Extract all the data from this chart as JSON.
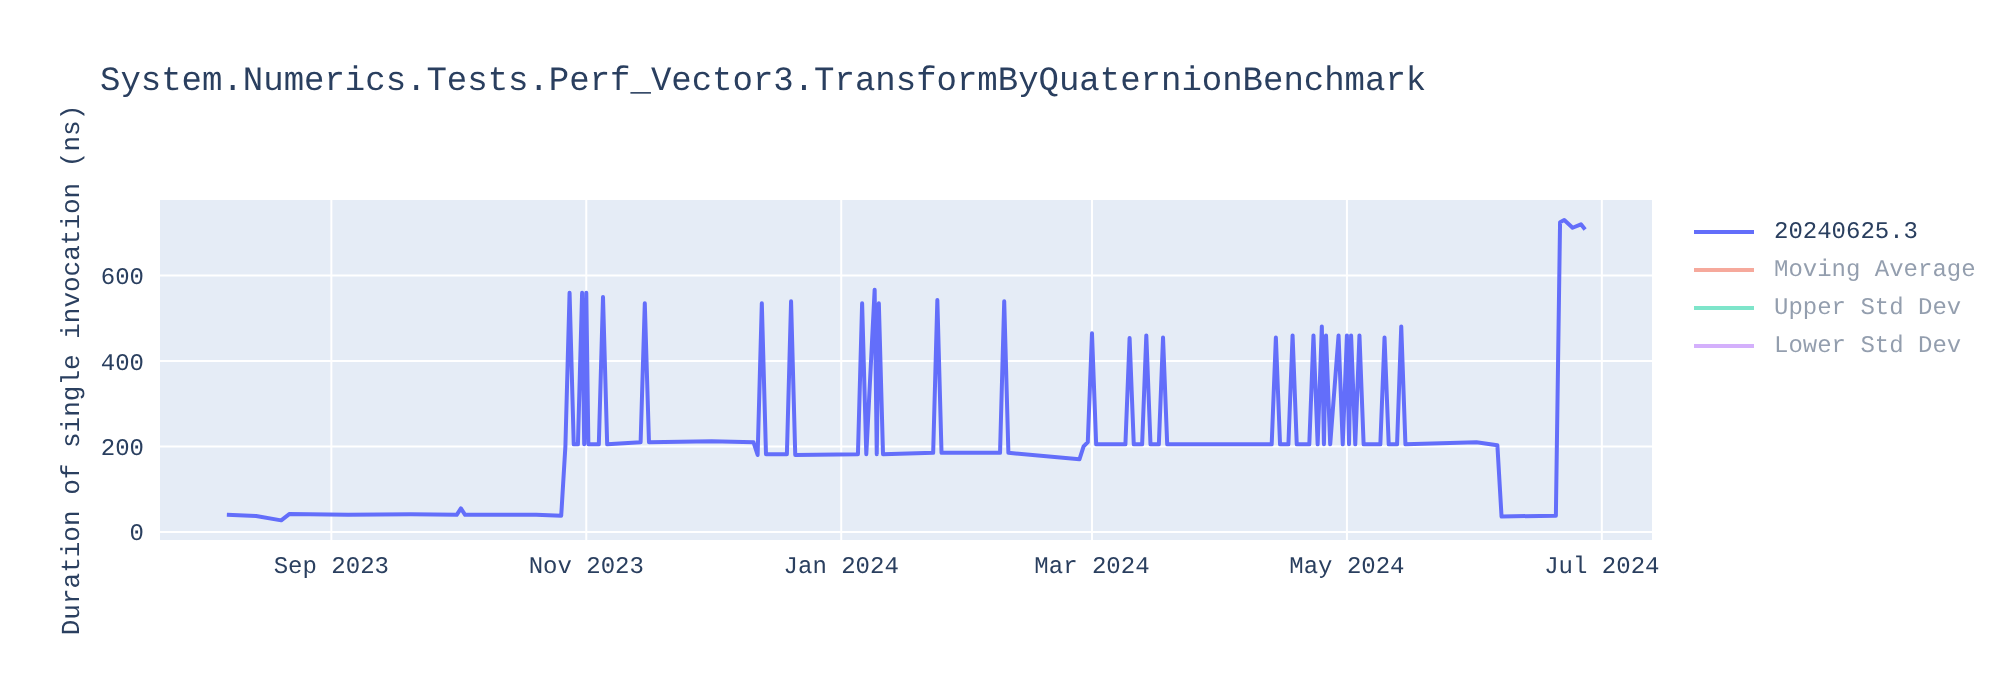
{
  "chart_data": {
    "type": "line",
    "title": "System.Numerics.Tests.Perf_Vector3.TransformByQuaternionBenchmark",
    "ylabel": "Duration of single invocation (ns)",
    "xlim": [
      "2023-07-22",
      "2024-07-13"
    ],
    "xticks": [
      {
        "value": "2023-09-01",
        "label": "Sep 2023"
      },
      {
        "value": "2023-11-01",
        "label": "Nov 2023"
      },
      {
        "value": "2024-01-01",
        "label": "Jan 2024"
      },
      {
        "value": "2024-03-01",
        "label": "Mar 2024"
      },
      {
        "value": "2024-05-01",
        "label": "May 2024"
      },
      {
        "value": "2024-07-01",
        "label": "Jul 2024"
      }
    ],
    "ylim": [
      -19,
      777
    ],
    "yticks": [
      0,
      200,
      400,
      600
    ],
    "grid": true,
    "legend": "top right",
    "marker": "none",
    "line_style": "solid",
    "series": [
      {
        "name": "20240625.3",
        "color": "#636efa",
        "x": [
          "2023-08-07",
          "2023-08-14",
          "2023-08-20",
          "2023-08-22",
          "2023-09-05",
          "2023-09-20",
          "2023-10-01",
          "2023-10-02",
          "2023-10-03",
          "2023-10-20",
          "2023-10-26",
          "2023-10-27",
          "2023-10-28",
          "2023-10-29",
          "2023-10-30",
          "2023-10-31",
          "2023-10-31T12:00",
          "2023-11-01",
          "2023-11-01T12:00",
          "2023-11-04",
          "2023-11-05",
          "2023-11-06",
          "2023-11-14",
          "2023-11-15",
          "2023-11-16",
          "2023-12-01",
          "2023-12-11",
          "2023-12-12",
          "2023-12-13",
          "2023-12-14",
          "2023-12-19",
          "2023-12-20",
          "2023-12-21",
          "2024-01-05",
          "2024-01-06",
          "2024-01-07",
          "2024-01-09",
          "2024-01-09T12:00",
          "2024-01-10",
          "2024-01-11",
          "2024-01-23",
          "2024-01-24",
          "2024-01-25",
          "2024-02-08",
          "2024-02-09",
          "2024-02-10",
          "2024-02-27",
          "2024-02-28",
          "2024-02-29",
          "2024-03-01",
          "2024-03-02",
          "2024-03-09",
          "2024-03-10",
          "2024-03-11",
          "2024-03-13",
          "2024-03-14",
          "2024-03-15",
          "2024-03-17",
          "2024-03-18",
          "2024-03-19",
          "2024-04-13",
          "2024-04-14",
          "2024-04-15",
          "2024-04-17",
          "2024-04-18",
          "2024-04-19",
          "2024-04-22",
          "2024-04-23",
          "2024-04-24",
          "2024-04-25",
          "2024-04-25T12:00",
          "2024-04-26",
          "2024-04-27",
          "2024-04-29",
          "2024-04-30",
          "2024-05-01",
          "2024-05-01T12:00",
          "2024-05-02",
          "2024-05-03",
          "2024-05-04",
          "2024-05-05",
          "2024-05-09",
          "2024-05-10",
          "2024-05-11",
          "2024-05-13",
          "2024-05-14",
          "2024-05-15",
          "2024-06-01",
          "2024-06-06",
          "2024-06-07",
          "2024-06-20",
          "2024-06-21",
          "2024-06-22",
          "2024-06-24",
          "2024-06-26",
          "2024-06-27"
        ],
        "values": [
          40,
          37,
          27,
          42,
          40,
          41,
          40,
          55,
          40,
          40,
          38,
          200,
          560,
          205,
          205,
          560,
          205,
          560,
          205,
          205,
          550,
          205,
          210,
          535,
          210,
          212,
          210,
          180,
          535,
          182,
          182,
          540,
          180,
          182,
          535,
          182,
          567,
          182,
          535,
          182,
          185,
          543,
          185,
          185,
          540,
          185,
          170,
          200,
          210,
          465,
          205,
          205,
          454,
          205,
          205,
          460,
          205,
          205,
          455,
          205,
          205,
          455,
          205,
          205,
          460,
          205,
          205,
          460,
          205,
          481,
          205,
          460,
          205,
          460,
          205,
          460,
          205,
          460,
          205,
          460,
          205,
          205,
          455,
          205,
          205,
          481,
          205,
          210,
          203,
          36,
          38,
          725,
          730,
          712,
          720,
          708
        ]
      },
      {
        "name": "Moving Average",
        "color": "#ef553b"
      },
      {
        "name": "Upper Std Dev",
        "color": "#00cc96"
      },
      {
        "name": "Lower Std Dev",
        "color": "#ab63fa"
      }
    ]
  }
}
